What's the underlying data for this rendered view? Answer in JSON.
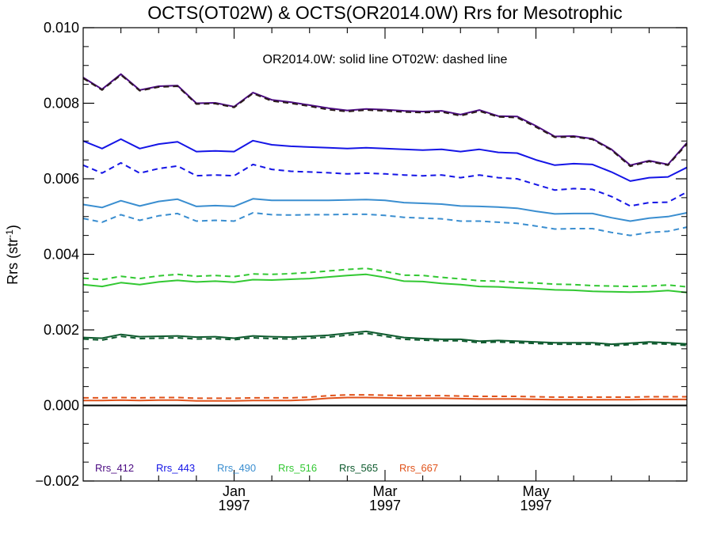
{
  "chart_data": {
    "type": "line",
    "title": "OCTS(OT02W) & OCTS(OR2014.0W)  Rrs for Mesotrophic",
    "ylabel": "Rrs (str",
    "ylabel_sup": "-1",
    "ylabel_close": ")",
    "annotation": "OR2014.0W: solid line   OT02W: dashed line",
    "ylim": [
      -0.002,
      0.01
    ],
    "xlim": [
      0,
      32
    ],
    "y_ticks": [
      -0.002,
      0.0,
      0.002,
      0.004,
      0.006,
      0.008,
      0.01
    ],
    "y_tick_labels": [
      "−0.002",
      "0.000",
      "0.002",
      "0.004",
      "0.006",
      "0.008",
      "0.010"
    ],
    "x_ticks": [
      {
        "x": 8,
        "month": "Jan",
        "year": "1997"
      },
      {
        "x": 16,
        "month": "Mar",
        "year": "1997"
      },
      {
        "x": 24,
        "month": "May",
        "year": "1997"
      }
    ],
    "zero_line": 0.0,
    "x": [
      0,
      1,
      2,
      3,
      4,
      5,
      6,
      7,
      8,
      9,
      10,
      11,
      12,
      13,
      14,
      15,
      16,
      17,
      18,
      19,
      20,
      21,
      22,
      23,
      24,
      25,
      26,
      27,
      28,
      29,
      30,
      31,
      32
    ],
    "series": [
      {
        "name": "Rrs_412",
        "color": "#4b0a82",
        "style": "solid",
        "values": [
          0.00868,
          0.00837,
          0.00877,
          0.00835,
          0.00845,
          0.00847,
          0.008,
          0.00801,
          0.00791,
          0.00828,
          0.00809,
          0.00803,
          0.00795,
          0.00787,
          0.00781,
          0.00785,
          0.00783,
          0.0078,
          0.00778,
          0.0078,
          0.0077,
          0.00782,
          0.00766,
          0.00765,
          0.0074,
          0.00712,
          0.00713,
          0.00706,
          0.00678,
          0.00636,
          0.00648,
          0.00638,
          0.00695
        ]
      },
      {
        "name": "Rrs_412",
        "color": "#2a1a1a",
        "style": "dashed",
        "values": [
          0.00866,
          0.00835,
          0.00875,
          0.00833,
          0.00843,
          0.00845,
          0.00798,
          0.00799,
          0.00789,
          0.00826,
          0.00806,
          0.008,
          0.00792,
          0.00783,
          0.00778,
          0.00782,
          0.0078,
          0.00777,
          0.00775,
          0.00777,
          0.00767,
          0.00779,
          0.00764,
          0.00762,
          0.00737,
          0.0071,
          0.00711,
          0.00704,
          0.00676,
          0.00633,
          0.00646,
          0.00636,
          0.00692
        ]
      },
      {
        "name": "Rrs_443",
        "color": "#1515e6",
        "style": "solid",
        "values": [
          0.007,
          0.0068,
          0.00705,
          0.0068,
          0.00692,
          0.00698,
          0.00672,
          0.00674,
          0.00672,
          0.00701,
          0.0069,
          0.00686,
          0.00684,
          0.00682,
          0.0068,
          0.00682,
          0.0068,
          0.00678,
          0.00676,
          0.00678,
          0.00672,
          0.00678,
          0.0067,
          0.00668,
          0.0065,
          0.00636,
          0.0064,
          0.00638,
          0.00618,
          0.00594,
          0.00603,
          0.00605,
          0.0063
        ]
      },
      {
        "name": "Rrs_443",
        "color": "#1515e6",
        "style": "dashed",
        "values": [
          0.00636,
          0.00615,
          0.00642,
          0.00615,
          0.00627,
          0.00634,
          0.00608,
          0.0061,
          0.00608,
          0.00638,
          0.00625,
          0.0062,
          0.00618,
          0.00616,
          0.00613,
          0.00615,
          0.00613,
          0.0061,
          0.00608,
          0.0061,
          0.00603,
          0.0061,
          0.00603,
          0.006,
          0.00585,
          0.0057,
          0.00574,
          0.00572,
          0.00553,
          0.00528,
          0.00537,
          0.00538,
          0.00565
        ]
      },
      {
        "name": "Rrs_490",
        "color": "#3a8ed0",
        "style": "solid",
        "values": [
          0.00532,
          0.00524,
          0.00542,
          0.00528,
          0.0054,
          0.00546,
          0.00527,
          0.00529,
          0.00527,
          0.00547,
          0.00543,
          0.00543,
          0.00543,
          0.00543,
          0.00544,
          0.00545,
          0.00543,
          0.00537,
          0.00535,
          0.00533,
          0.00528,
          0.00527,
          0.00525,
          0.00522,
          0.00514,
          0.00507,
          0.00508,
          0.00508,
          0.00497,
          0.00488,
          0.00496,
          0.005,
          0.0051
        ]
      },
      {
        "name": "Rrs_490",
        "color": "#3a8ed0",
        "style": "dashed",
        "values": [
          0.00495,
          0.00485,
          0.00505,
          0.0049,
          0.00502,
          0.00508,
          0.00488,
          0.0049,
          0.00488,
          0.0051,
          0.00505,
          0.00504,
          0.00505,
          0.00505,
          0.00506,
          0.00506,
          0.00503,
          0.00498,
          0.00496,
          0.00494,
          0.00488,
          0.00488,
          0.00485,
          0.00482,
          0.00475,
          0.00467,
          0.00468,
          0.00468,
          0.00458,
          0.0045,
          0.00458,
          0.00461,
          0.00472
        ]
      },
      {
        "name": "Rrs_516",
        "color": "#32c832",
        "style": "solid",
        "values": [
          0.0032,
          0.00315,
          0.00325,
          0.0032,
          0.00327,
          0.00331,
          0.00327,
          0.00329,
          0.00326,
          0.00333,
          0.00332,
          0.00334,
          0.00336,
          0.0034,
          0.00344,
          0.00347,
          0.00339,
          0.00329,
          0.00328,
          0.00323,
          0.0032,
          0.00315,
          0.00314,
          0.00311,
          0.00309,
          0.00306,
          0.00305,
          0.00302,
          0.00301,
          0.003,
          0.00301,
          0.00304,
          0.00299
        ]
      },
      {
        "name": "Rrs_516",
        "color": "#32c832",
        "style": "dashed",
        "values": [
          0.00337,
          0.00333,
          0.00342,
          0.00336,
          0.00343,
          0.00347,
          0.00342,
          0.00344,
          0.00341,
          0.00348,
          0.00347,
          0.00349,
          0.00352,
          0.00356,
          0.0036,
          0.00363,
          0.00355,
          0.00345,
          0.00344,
          0.00339,
          0.00335,
          0.0033,
          0.00329,
          0.00326,
          0.00324,
          0.00321,
          0.0032,
          0.00317,
          0.00316,
          0.00315,
          0.00316,
          0.00319,
          0.00314
        ]
      },
      {
        "name": "Rrs_565",
        "color": "#0e5a2e",
        "style": "solid",
        "values": [
          0.0018,
          0.00178,
          0.00188,
          0.00182,
          0.00183,
          0.00184,
          0.00181,
          0.00182,
          0.00178,
          0.00184,
          0.00182,
          0.00181,
          0.00183,
          0.00186,
          0.00191,
          0.00196,
          0.00188,
          0.0018,
          0.00177,
          0.00175,
          0.00175,
          0.0017,
          0.00172,
          0.0017,
          0.00168,
          0.00166,
          0.00166,
          0.00166,
          0.00162,
          0.00165,
          0.00168,
          0.00166,
          0.00163
        ]
      },
      {
        "name": "Rrs_565",
        "color": "#0e5a2e",
        "style": "dashed",
        "values": [
          0.00176,
          0.00173,
          0.00183,
          0.00177,
          0.00178,
          0.00179,
          0.00176,
          0.00177,
          0.00174,
          0.00179,
          0.00177,
          0.00176,
          0.00178,
          0.00181,
          0.00186,
          0.00191,
          0.00183,
          0.00175,
          0.00173,
          0.00171,
          0.00171,
          0.00166,
          0.00168,
          0.00166,
          0.00164,
          0.00162,
          0.00162,
          0.00162,
          0.00158,
          0.00161,
          0.00164,
          0.00162,
          0.00159
        ]
      },
      {
        "name": "Rrs_667",
        "color": "#e0521a",
        "style": "solid",
        "values": [
          0.00013,
          0.00013,
          0.00014,
          0.00013,
          0.00014,
          0.00014,
          0.00012,
          0.00012,
          0.00012,
          0.00013,
          0.00013,
          0.00013,
          0.00015,
          0.00019,
          0.00021,
          0.00021,
          0.0002,
          0.00019,
          0.00019,
          0.00019,
          0.00018,
          0.00017,
          0.00017,
          0.00017,
          0.00016,
          0.00015,
          0.00015,
          0.00015,
          0.00015,
          0.00015,
          0.00016,
          0.00016,
          0.00016
        ]
      },
      {
        "name": "Rrs_667",
        "color": "#e0521a",
        "style": "dashed",
        "values": [
          0.0002,
          0.0002,
          0.00021,
          0.0002,
          0.00021,
          0.00021,
          0.00019,
          0.00019,
          0.00019,
          0.0002,
          0.0002,
          0.0002,
          0.00022,
          0.00026,
          0.00028,
          0.00028,
          0.00027,
          0.00026,
          0.00026,
          0.00026,
          0.00025,
          0.00024,
          0.00024,
          0.00024,
          0.00023,
          0.00022,
          0.00022,
          0.00022,
          0.00022,
          0.00022,
          0.00023,
          0.00023,
          0.00023
        ]
      }
    ],
    "legend": [
      {
        "label": "Rrs_412",
        "color": "#4b0a82"
      },
      {
        "label": "Rrs_443",
        "color": "#1515e6"
      },
      {
        "label": "Rrs_490",
        "color": "#3a8ed0"
      },
      {
        "label": "Rrs_516",
        "color": "#32c832"
      },
      {
        "label": "Rrs_565",
        "color": "#0e5a2e"
      },
      {
        "label": "Rrs_667",
        "color": "#e0521a"
      }
    ],
    "legend_position": "bottom-left"
  }
}
